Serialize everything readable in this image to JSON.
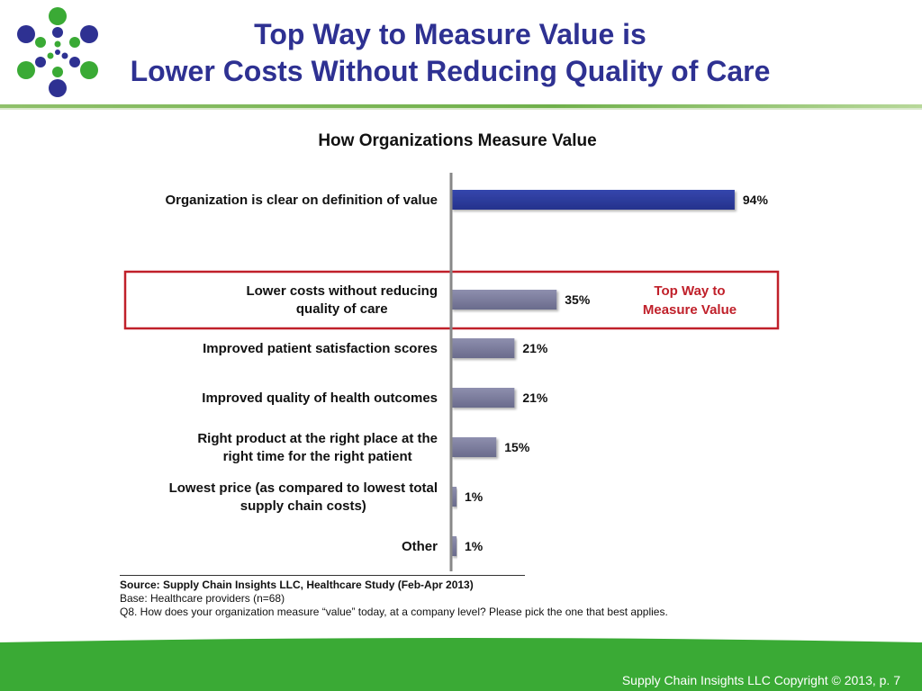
{
  "slide": {
    "title_line1": "Top Way to Measure Value is",
    "title_line2": "Lower Costs Without Reducing Quality of Care",
    "footer": "Supply Chain Insights LLC Copyright © 2013, p. 7"
  },
  "colors": {
    "title": "#2e3192",
    "highlight_bar": "#2e3c9e",
    "bar": "#7a7b9a",
    "callout": "#c0202a",
    "green": "#3aaa35"
  },
  "logo": {
    "icon": "dotted-circle-logo-icon"
  },
  "chart_data": {
    "type": "bar",
    "orientation": "horizontal",
    "title": "How Organizations Measure Value",
    "categories": [
      "Organization is clear on definition of value",
      "Lower costs without reducing quality of care",
      "Improved patient satisfaction scores",
      "Improved quality of health outcomes",
      "Right product at the right place at the right time for the right patient",
      "Lowest price (as compared to lowest total supply chain costs)",
      "Other"
    ],
    "category_lines": [
      [
        "Organization is clear on definition of value"
      ],
      [
        "Lower costs without reducing",
        "quality of care"
      ],
      [
        "Improved patient satisfaction scores"
      ],
      [
        "Improved quality of health outcomes"
      ],
      [
        "Right product at the right place at the",
        "right time for the right patient"
      ],
      [
        "Lowest price (as compared to lowest total",
        "supply chain costs)"
      ],
      [
        "Other"
      ]
    ],
    "values": [
      94,
      35,
      21,
      21,
      15,
      1,
      1
    ],
    "value_labels": [
      "94%",
      "35%",
      "21%",
      "21%",
      "15%",
      "1%",
      "1%"
    ],
    "highlighted_index": 0,
    "callout": {
      "category_index": 1,
      "lines": [
        "Top Way to",
        "Measure Value"
      ]
    },
    "xlim": [
      0,
      100
    ]
  },
  "source": {
    "line1": "Source:  Supply Chain Insights LLC, Healthcare Study (Feb-Apr 2013)",
    "line2": "Base:  Healthcare providers (n=68)",
    "line3": "Q8. How does your organization measure “value” today, at a company level? Please pick the one that best applies."
  }
}
